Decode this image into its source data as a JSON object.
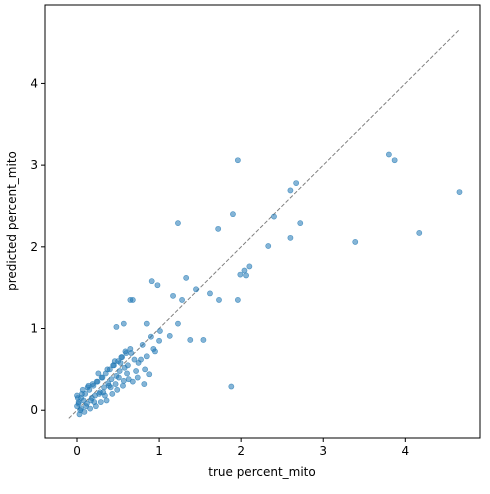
{
  "chart_data": {
    "type": "scatter",
    "x_label": "true percent_mito",
    "y_label": "predicted percent_mito",
    "xlim": [
      -0.39,
      4.91
    ],
    "ylim": [
      -0.34,
      4.96
    ],
    "xticks": [
      0,
      1,
      2,
      3,
      4
    ],
    "yticks": [
      0,
      1,
      2,
      3,
      4
    ],
    "grid": false,
    "color": "#1f77b4",
    "reference_line": {
      "x": [
        -0.1,
        4.65
      ],
      "y": [
        -0.1,
        4.65
      ],
      "color": "#808080"
    },
    "series": [
      {
        "x": [
          1.96,
          3.8,
          3.87,
          4.66,
          2.67,
          2.6,
          2.4,
          2.72,
          1.9,
          1.23,
          1.72,
          2.33,
          2.6,
          3.39,
          4.17,
          2.1,
          2.04,
          1.99,
          2.06,
          1.96,
          1.73,
          1.88,
          1.33,
          0.91,
          0.98,
          1.17,
          1.28,
          1.45,
          1.62,
          1.38,
          1.54,
          1.23,
          0.65,
          0.68,
          0.48,
          0.57,
          0.85,
          1.01,
          1.13,
          0.0,
          0.02,
          0.05,
          0.08,
          0.1,
          0.12,
          0.15,
          0.18,
          0.2,
          0.22,
          0.25,
          0.28,
          0.3,
          0.33,
          0.35,
          0.38,
          0.4,
          0.42,
          0.45,
          0.48,
          0.5,
          0.52,
          0.55,
          0.58,
          0.6,
          0.62,
          0.65,
          0.7,
          0.75,
          0.8,
          0.85,
          0.9,
          0.95,
          1.0,
          0.01,
          0.04,
          0.07,
          0.11,
          0.14,
          0.17,
          0.21,
          0.24,
          0.27,
          0.31,
          0.34,
          0.37,
          0.41,
          0.44,
          0.47,
          0.51,
          0.54,
          0.57,
          0.61,
          0.66,
          0.72,
          0.78,
          0.83,
          0.88,
          0.93,
          0.03,
          0.06,
          0.09,
          0.13,
          0.16,
          0.19,
          0.23,
          0.26,
          0.29,
          0.32,
          0.36,
          0.39,
          0.43,
          0.46,
          0.49,
          0.53,
          0.56,
          0.59,
          0.63,
          0.68,
          0.74,
          0.82,
          0.0,
          0.02,
          0.05
        ],
        "values": [
          3.06,
          3.13,
          3.06,
          2.67,
          2.78,
          2.69,
          2.37,
          2.29,
          2.4,
          2.29,
          2.22,
          2.01,
          2.11,
          2.06,
          2.17,
          1.76,
          1.71,
          1.66,
          1.65,
          1.35,
          1.35,
          0.29,
          1.62,
          1.58,
          1.53,
          1.4,
          1.35,
          1.48,
          1.43,
          0.86,
          0.86,
          1.06,
          1.35,
          1.35,
          1.02,
          1.06,
          1.06,
          0.97,
          0.91,
          0.05,
          0.1,
          0.02,
          0.12,
          0.2,
          0.08,
          0.25,
          0.15,
          0.3,
          0.18,
          0.35,
          0.22,
          0.4,
          0.28,
          0.45,
          0.33,
          0.5,
          0.38,
          0.55,
          0.42,
          0.6,
          0.48,
          0.65,
          0.52,
          0.7,
          0.55,
          0.75,
          0.62,
          0.58,
          0.8,
          0.66,
          0.9,
          0.72,
          0.85,
          0.15,
          0.0,
          0.25,
          0.05,
          0.3,
          0.12,
          0.1,
          0.35,
          0.2,
          0.4,
          0.18,
          0.5,
          0.28,
          0.55,
          0.32,
          0.4,
          0.65,
          0.36,
          0.45,
          0.7,
          0.48,
          0.62,
          0.5,
          0.44,
          0.75,
          -0.05,
          0.2,
          -0.02,
          0.28,
          0.02,
          0.32,
          0.05,
          0.45,
          0.1,
          0.22,
          0.12,
          0.3,
          0.2,
          0.6,
          0.25,
          0.58,
          0.3,
          0.72,
          0.38,
          0.35,
          0.4,
          0.32,
          0.18,
          0.08,
          0.15
        ]
      }
    ]
  }
}
